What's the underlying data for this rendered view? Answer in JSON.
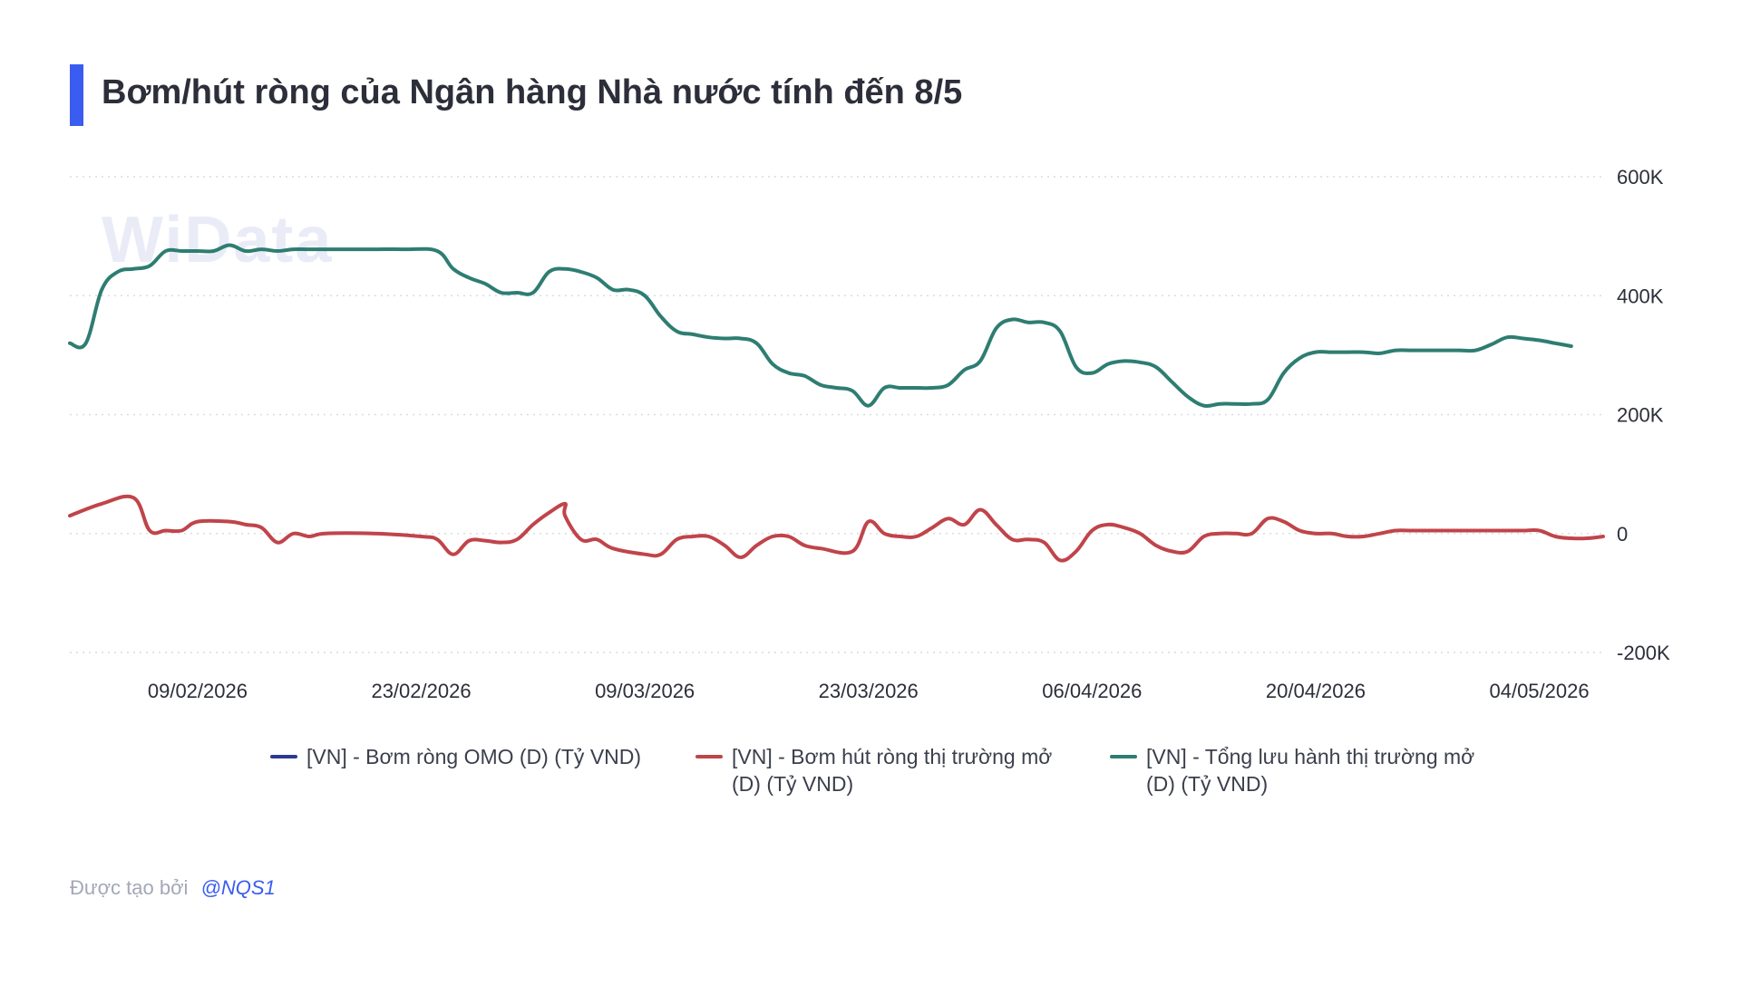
{
  "title": "Bơm/hút ròng của Ngân hàng Nhà nước tính đến 8/5",
  "watermark": "WiData",
  "footer": {
    "label": "Được tạo bởi",
    "author": "@NQS1"
  },
  "colors": {
    "accent": "#3a5cf0",
    "omo": "#2b3a8f",
    "net": "#c0444a",
    "outstanding": "#2e7d72"
  },
  "chart_data": {
    "type": "line",
    "title": "Bơm/hút ròng của Ngân hàng Nhà nước tính đến 8/5",
    "y_axis_position": "right",
    "ylim": [
      -200000,
      600000
    ],
    "y_ticks": [
      600000,
      400000,
      200000,
      0,
      -200000
    ],
    "y_tick_labels": [
      "600K",
      "400K",
      "200K",
      "0",
      "-200K"
    ],
    "x_ticks": [
      "09/02/2026",
      "23/02/2026",
      "09/03/2026",
      "23/03/2026",
      "06/04/2026",
      "20/04/2026",
      "04/05/2026"
    ],
    "xlim": [
      "2026-02-01",
      "2026-05-08"
    ],
    "grid": "horizontal dotted",
    "legend": "bottom",
    "series": [
      {
        "name": "[VN] - Bơm ròng OMO (D) (Tỷ VND)",
        "color": "#2b3a8f",
        "points": []
      },
      {
        "name": "[VN] - Bơm hút ròng thị trường mở (D) (Tỷ VND)",
        "color": "#c0444a",
        "points": [
          [
            "2026-02-01",
            30000
          ],
          [
            "2026-02-03",
            50000
          ],
          [
            "2026-03-04",
            50000
          ],
          [
            "2026-02-05",
            60000
          ],
          [
            "2026-02-06",
            5000
          ],
          [
            "2026-02-07",
            5000
          ],
          [
            "2026-02-08",
            5000
          ],
          [
            "2026-02-09",
            20000
          ],
          [
            "2026-02-11",
            20000
          ],
          [
            "2026-02-12",
            15000
          ],
          [
            "2026-02-13",
            10000
          ],
          [
            "2026-02-14",
            -15000
          ],
          [
            "2026-02-15",
            0
          ],
          [
            "2026-02-16",
            -5000
          ],
          [
            "2026-02-17",
            0
          ],
          [
            "2026-02-20",
            0
          ],
          [
            "2026-02-23",
            -5000
          ],
          [
            "2026-02-24",
            -10000
          ],
          [
            "2026-02-25",
            -35000
          ],
          [
            "2026-02-26",
            -12000
          ],
          [
            "2026-02-27",
            -12000
          ],
          [
            "2026-02-28",
            -15000
          ],
          [
            "2026-03-01",
            -10000
          ],
          [
            "2026-03-02",
            15000
          ],
          [
            "2026-03-03",
            35000
          ],
          [
            "2026-03-04",
            30000
          ],
          [
            "2026-03-05",
            -10000
          ],
          [
            "2026-03-06",
            -10000
          ],
          [
            "2026-03-07",
            -25000
          ],
          [
            "2026-03-09",
            -35000
          ],
          [
            "2026-03-10",
            -35000
          ],
          [
            "2026-03-11",
            -10000
          ],
          [
            "2026-03-12",
            -5000
          ],
          [
            "2026-03-13",
            -5000
          ],
          [
            "2026-03-14",
            -20000
          ],
          [
            "2026-03-15",
            -40000
          ],
          [
            "2026-03-16",
            -20000
          ],
          [
            "2026-03-17",
            -5000
          ],
          [
            "2026-03-18",
            -5000
          ],
          [
            "2026-03-19",
            -20000
          ],
          [
            "2026-03-20",
            -25000
          ],
          [
            "2026-03-22",
            -30000
          ],
          [
            "2026-03-23",
            20000
          ],
          [
            "2026-03-24",
            0
          ],
          [
            "2026-03-25",
            -5000
          ],
          [
            "2026-03-26",
            -5000
          ],
          [
            "2026-03-27",
            10000
          ],
          [
            "2026-03-28",
            25000
          ],
          [
            "2026-03-29",
            15000
          ],
          [
            "2026-03-30",
            40000
          ],
          [
            "2026-03-31",
            15000
          ],
          [
            "2026-04-01",
            -10000
          ],
          [
            "2026-04-02",
            -10000
          ],
          [
            "2026-04-03",
            -15000
          ],
          [
            "2026-04-04",
            -45000
          ],
          [
            "2026-04-05",
            -30000
          ],
          [
            "2026-04-06",
            5000
          ],
          [
            "2026-04-07",
            15000
          ],
          [
            "2026-04-08",
            10000
          ],
          [
            "2026-04-09",
            0
          ],
          [
            "2026-04-10",
            -20000
          ],
          [
            "2026-04-11",
            -30000
          ],
          [
            "2026-04-12",
            -30000
          ],
          [
            "2026-04-13",
            -5000
          ],
          [
            "2026-04-14",
            0
          ],
          [
            "2026-04-15",
            0
          ],
          [
            "2026-04-16",
            0
          ],
          [
            "2026-04-17",
            25000
          ],
          [
            "2026-04-18",
            20000
          ],
          [
            "2026-04-19",
            5000
          ],
          [
            "2026-04-20",
            0
          ],
          [
            "2026-04-21",
            0
          ],
          [
            "2026-04-22",
            -5000
          ],
          [
            "2026-04-23",
            -5000
          ],
          [
            "2026-04-24",
            0
          ],
          [
            "2026-04-25",
            5000
          ],
          [
            "2026-04-26",
            5000
          ],
          [
            "2026-04-27",
            5000
          ],
          [
            "2026-04-28",
            5000
          ],
          [
            "2026-04-29",
            5000
          ],
          [
            "2026-04-30",
            5000
          ],
          [
            "2026-05-01",
            5000
          ],
          [
            "2026-05-02",
            5000
          ],
          [
            "2026-05-03",
            5000
          ],
          [
            "2026-05-04",
            5000
          ],
          [
            "2026-05-05",
            -5000
          ],
          [
            "2026-05-06",
            -8000
          ],
          [
            "2026-05-07",
            -8000
          ],
          [
            "2026-05-08",
            -5000
          ]
        ]
      },
      {
        "name": "[VN] - Tổng lưu hành thị trường mở (D) (Tỷ VND)",
        "color": "#2e7d72",
        "points": [
          [
            "2026-02-01",
            320000
          ],
          [
            "2026-02-02",
            320000
          ],
          [
            "2026-02-03",
            410000
          ],
          [
            "2026-02-04",
            440000
          ],
          [
            "2026-02-05",
            445000
          ],
          [
            "2026-02-06",
            450000
          ],
          [
            "2026-02-07",
            475000
          ],
          [
            "2026-02-08",
            475000
          ],
          [
            "2026-02-09",
            475000
          ],
          [
            "2026-02-10",
            475000
          ],
          [
            "2026-02-11",
            485000
          ],
          [
            "2026-02-12",
            475000
          ],
          [
            "2026-02-13",
            478000
          ],
          [
            "2026-02-14",
            475000
          ],
          [
            "2026-02-15",
            478000
          ],
          [
            "2026-02-16",
            478000
          ],
          [
            "2026-02-18",
            478000
          ],
          [
            "2026-02-20",
            478000
          ],
          [
            "2026-02-22",
            478000
          ],
          [
            "2026-02-24",
            475000
          ],
          [
            "2026-02-25",
            445000
          ],
          [
            "2026-02-26",
            430000
          ],
          [
            "2026-02-27",
            420000
          ],
          [
            "2026-02-28",
            405000
          ],
          [
            "2026-03-01",
            405000
          ],
          [
            "2026-03-02",
            405000
          ],
          [
            "2026-03-03",
            440000
          ],
          [
            "2026-03-04",
            445000
          ],
          [
            "2026-03-05",
            440000
          ],
          [
            "2026-03-06",
            430000
          ],
          [
            "2026-03-07",
            410000
          ],
          [
            "2026-03-08",
            410000
          ],
          [
            "2026-03-09",
            400000
          ],
          [
            "2026-03-10",
            365000
          ],
          [
            "2026-03-11",
            340000
          ],
          [
            "2026-03-12",
            335000
          ],
          [
            "2026-03-13",
            330000
          ],
          [
            "2026-03-14",
            328000
          ],
          [
            "2026-03-15",
            328000
          ],
          [
            "2026-03-16",
            320000
          ],
          [
            "2026-03-17",
            285000
          ],
          [
            "2026-03-18",
            270000
          ],
          [
            "2026-03-19",
            265000
          ],
          [
            "2026-03-20",
            250000
          ],
          [
            "2026-03-21",
            245000
          ],
          [
            "2026-03-22",
            240000
          ],
          [
            "2026-03-23",
            215000
          ],
          [
            "2026-03-24",
            245000
          ],
          [
            "2026-03-25",
            245000
          ],
          [
            "2026-03-26",
            245000
          ],
          [
            "2026-03-27",
            245000
          ],
          [
            "2026-03-28",
            250000
          ],
          [
            "2026-03-29",
            275000
          ],
          [
            "2026-03-30",
            290000
          ],
          [
            "2026-03-31",
            345000
          ],
          [
            "2026-04-01",
            360000
          ],
          [
            "2026-04-02",
            355000
          ],
          [
            "2026-04-03",
            355000
          ],
          [
            "2026-04-04",
            340000
          ],
          [
            "2026-04-05",
            280000
          ],
          [
            "2026-04-06",
            270000
          ],
          [
            "2026-04-07",
            285000
          ],
          [
            "2026-04-08",
            290000
          ],
          [
            "2026-04-09",
            288000
          ],
          [
            "2026-04-10",
            280000
          ],
          [
            "2026-04-11",
            255000
          ],
          [
            "2026-04-12",
            230000
          ],
          [
            "2026-04-13",
            215000
          ],
          [
            "2026-04-14",
            218000
          ],
          [
            "2026-04-15",
            218000
          ],
          [
            "2026-04-16",
            218000
          ],
          [
            "2026-04-17",
            225000
          ],
          [
            "2026-04-18",
            270000
          ],
          [
            "2026-04-19",
            295000
          ],
          [
            "2026-04-20",
            305000
          ],
          [
            "2026-04-21",
            305000
          ],
          [
            "2026-04-22",
            305000
          ],
          [
            "2026-04-23",
            305000
          ],
          [
            "2026-04-24",
            303000
          ],
          [
            "2026-04-25",
            308000
          ],
          [
            "2026-04-26",
            308000
          ],
          [
            "2026-04-27",
            308000
          ],
          [
            "2026-04-28",
            308000
          ],
          [
            "2026-04-29",
            308000
          ],
          [
            "2026-04-30",
            308000
          ],
          [
            "2026-05-01",
            318000
          ],
          [
            "2026-05-02",
            330000
          ],
          [
            "2026-05-03",
            328000
          ],
          [
            "2026-05-04",
            325000
          ],
          [
            "2026-05-05",
            320000
          ],
          [
            "2026-05-06",
            315000
          ]
        ]
      }
    ]
  }
}
